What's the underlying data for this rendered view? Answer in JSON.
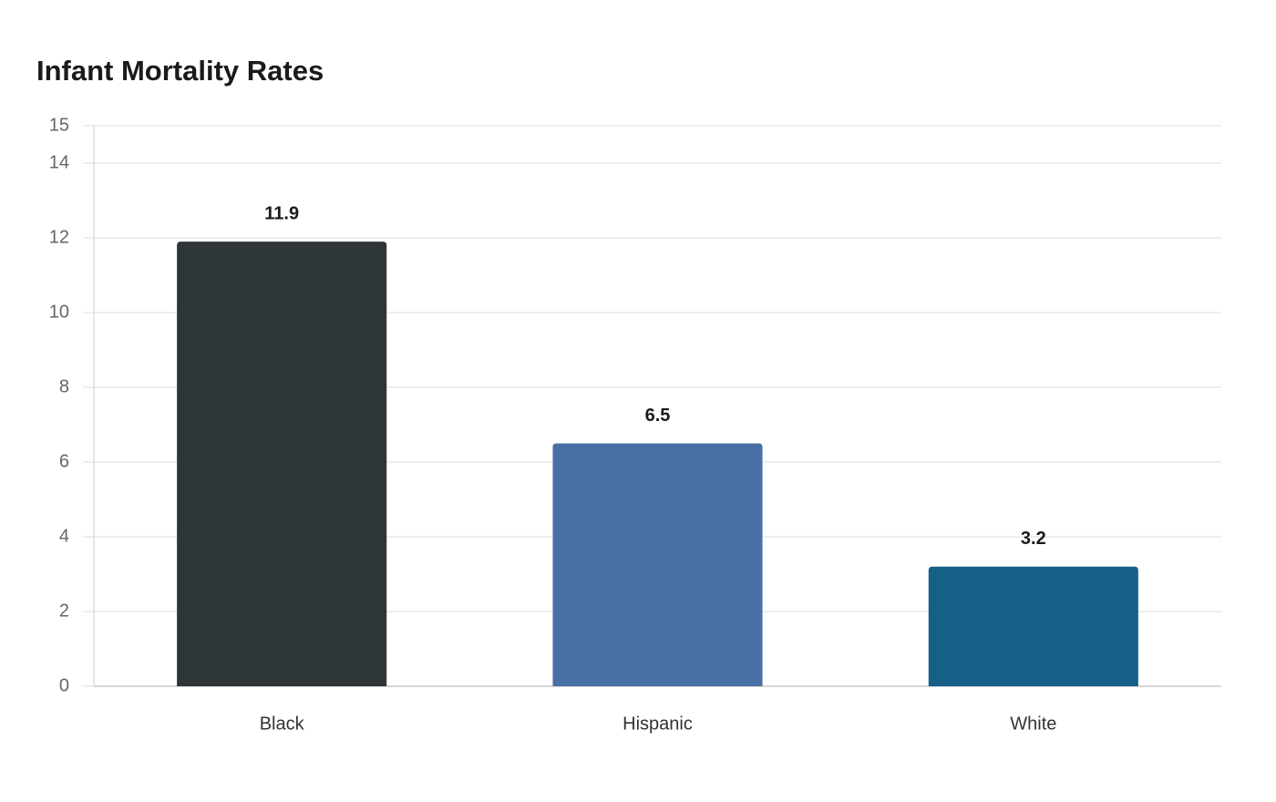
{
  "chart_data": {
    "type": "bar",
    "title": "Infant Mortality Rates",
    "categories": [
      "Black",
      "Hispanic",
      "White"
    ],
    "values": [
      11.9,
      6.5,
      3.2
    ],
    "colors": [
      "#2e3538",
      "#4a6fa5",
      "#166088"
    ],
    "ylim": [
      0,
      15
    ],
    "yticks": [
      0,
      2,
      4,
      6,
      8,
      10,
      12,
      14,
      15
    ],
    "grid": true
  }
}
